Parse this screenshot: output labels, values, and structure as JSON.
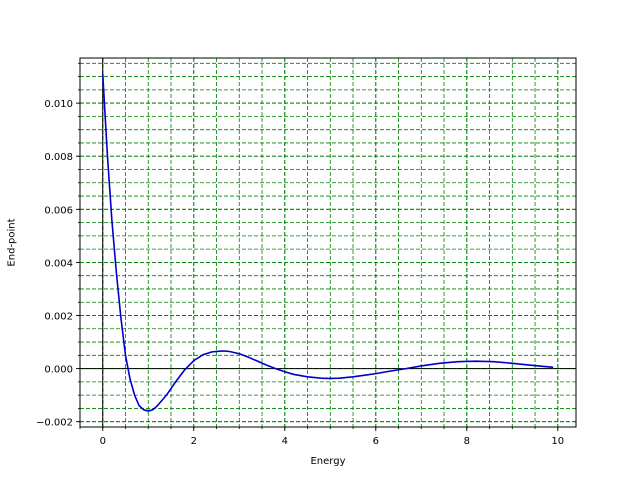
{
  "chart_data": {
    "type": "line",
    "title": "",
    "xlabel": "Energy",
    "ylabel": "End-point",
    "xlim": [
      -0.5,
      10.4
    ],
    "ylim": [
      -0.0022,
      0.0117
    ],
    "x_ticks": [
      0,
      2,
      4,
      6,
      8,
      10
    ],
    "x_tick_labels": [
      "0",
      "2",
      "4",
      "6",
      "8",
      "10"
    ],
    "y_ticks": [
      -0.002,
      0.0,
      0.002,
      0.004,
      0.006,
      0.008,
      0.01
    ],
    "y_tick_labels": [
      "−0.002",
      "0.000",
      "0.002",
      "0.004",
      "0.006",
      "0.008",
      "0.010"
    ],
    "x_minor_step": 0.5,
    "y_minor_step": 0.0005,
    "grid": true,
    "grid_color": "#008000",
    "grid_style": "dashed",
    "reference_lines": {
      "x": 0,
      "y": 0,
      "color": "#000000"
    },
    "series": [
      {
        "color": "#0000cc",
        "x": [
          0,
          0.1,
          0.2,
          0.3,
          0.4,
          0.5,
          0.6,
          0.7,
          0.8,
          0.9,
          1.0,
          1.1,
          1.2,
          1.4,
          1.6,
          1.8,
          2.0,
          2.2,
          2.4,
          2.6,
          2.7,
          2.8,
          3.0,
          3.2,
          3.4,
          3.6,
          3.8,
          4.0,
          4.2,
          4.5,
          4.8,
          5.0,
          5.2,
          5.5,
          5.8,
          6.0,
          6.3,
          6.6,
          7.0,
          7.4,
          7.8,
          8.2,
          8.6,
          9.0,
          9.4,
          9.9
        ],
        "y": [
          0.0111,
          0.0081,
          0.0056,
          0.0036,
          0.0019,
          0.0005,
          -0.0004,
          -0.001,
          -0.0014,
          -0.00155,
          -0.0016,
          -0.00155,
          -0.0014,
          -0.001,
          -0.0005,
          -5e-05,
          0.0003,
          0.00052,
          0.00063,
          0.00066,
          0.00066,
          0.00064,
          0.00056,
          0.00043,
          0.00028,
          0.00013,
          0.0,
          -0.00012,
          -0.00022,
          -0.00031,
          -0.00036,
          -0.00037,
          -0.00036,
          -0.00031,
          -0.00024,
          -0.00019,
          -0.0001,
          -2e-05,
          0.0001,
          0.0002,
          0.00026,
          0.00028,
          0.00026,
          0.0002,
          0.00013,
          5e-05
        ]
      }
    ]
  }
}
